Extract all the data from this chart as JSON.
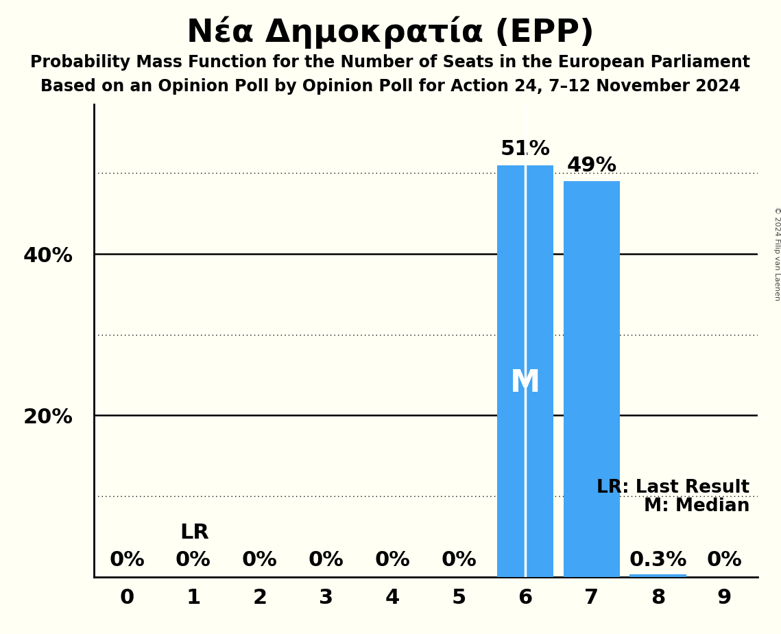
{
  "title": "Νέα Δημοκρατία (EPP)",
  "subtitle1": "Probability Mass Function for the Number of Seats in the European Parliament",
  "subtitle2": "Based on an Opinion Poll by Opinion Poll for Action 24, 7–12 November 2024",
  "copyright": "© 2024 Filip van Laenen",
  "categories": [
    0,
    1,
    2,
    3,
    4,
    5,
    6,
    7,
    8,
    9
  ],
  "values": [
    0.0,
    0.0,
    0.0,
    0.0,
    0.0,
    0.0,
    0.51,
    0.49,
    0.003,
    0.0
  ],
  "bar_color": "#42a5f5",
  "bar_labels": [
    "0%",
    "0%",
    "0%",
    "0%",
    "0%",
    "0%",
    "51%",
    "49%",
    "0.3%",
    "0%"
  ],
  "median_bar": 6,
  "last_result_bar": 6,
  "background_color": "#fffff4",
  "median_label": "M",
  "legend_lr": "LR: Last Result",
  "legend_m": "M: Median",
  "solid_hlines": [
    0.2,
    0.4
  ],
  "dotted_hlines": [
    0.1,
    0.3,
    0.5
  ],
  "yticks": [
    0.2,
    0.4
  ],
  "ytick_labels": [
    "20%",
    "40%"
  ],
  "xlim": [
    -0.5,
    9.5
  ],
  "ylim": [
    0,
    0.585
  ],
  "title_fontsize": 34,
  "subtitle_fontsize": 17,
  "tick_fontsize": 22,
  "bar_label_fontsize": 22,
  "legend_fontsize": 19,
  "median_fontsize": 32
}
